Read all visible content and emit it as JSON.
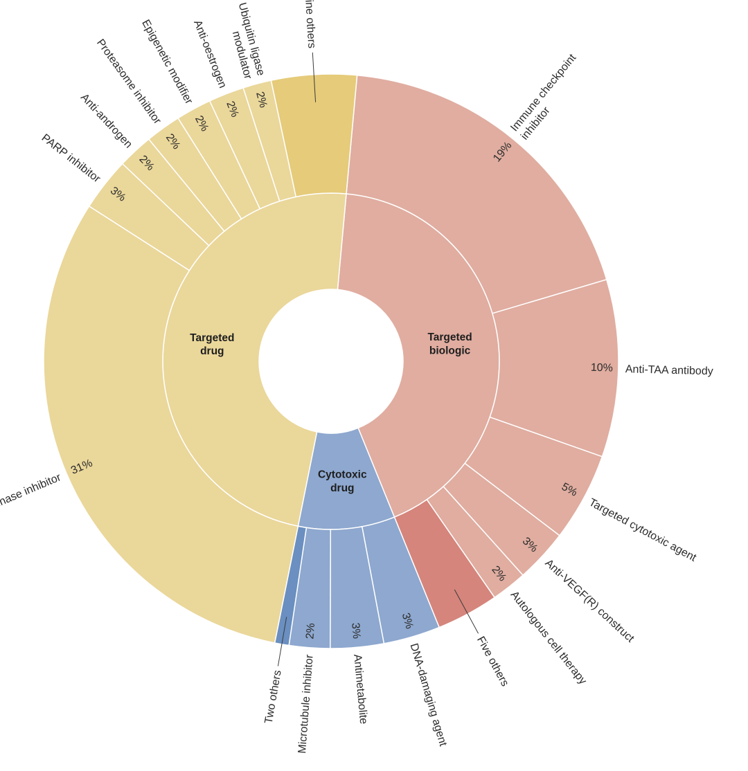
{
  "chart_data": {
    "type": "sunburst",
    "categories": [
      {
        "name": "Targeted biologic",
        "label_lines": [
          "Targeted",
          "biologic"
        ],
        "color": "#e0ada0",
        "children": [
          {
            "name": "Immune checkpoint inhibitor",
            "label_lines": [
              "Immune checkpoint",
              "inhibitor"
            ],
            "value": 19,
            "pct_label": "19%"
          },
          {
            "name": "Anti-TAA antibody",
            "label_lines": [
              "Anti-TAA antibody"
            ],
            "value": 10,
            "pct_label": "10%"
          },
          {
            "name": "Targeted cytotoxic agent",
            "label_lines": [
              "Targeted cytotoxic agent"
            ],
            "value": 5,
            "pct_label": "5%"
          },
          {
            "name": "Anti-VEGF(R) construct",
            "label_lines": [
              "Anti-VEGF(R) construct"
            ],
            "value": 3,
            "pct_label": "3%"
          },
          {
            "name": "Autologous cell therapy",
            "label_lines": [
              "Autologous cell therapy"
            ],
            "value": 2,
            "pct_label": "2%"
          },
          {
            "name": "Five others",
            "label_lines": [
              "Five others"
            ],
            "value": 3.5,
            "pct_label": "",
            "color": "#d5857c"
          }
        ]
      },
      {
        "name": "Cytotoxic drug",
        "label_lines": [
          "Cytotoxic",
          "drug"
        ],
        "color": "#8ea8cf",
        "children": [
          {
            "name": "DNA-damaging agent",
            "label_lines": [
              "DNA-damaging agent"
            ],
            "value": 3.2,
            "pct_label": "3%"
          },
          {
            "name": "Antimetabolite",
            "label_lines": [
              "Antimetabolite"
            ],
            "value": 3,
            "pct_label": "3%"
          },
          {
            "name": "Microtubule inhibitor",
            "label_lines": [
              "Microtubule inhibitor"
            ],
            "value": 2.3,
            "pct_label": "2%"
          },
          {
            "name": "Two others",
            "label_lines": [
              "Two others"
            ],
            "value": 0.8,
            "pct_label": "",
            "color": "#6a8fc0"
          }
        ]
      },
      {
        "name": "Targeted drug",
        "label_lines": [
          "Targeted",
          "drug"
        ],
        "color": "#ead79a",
        "children": [
          {
            "name": "Kinase inhibitor",
            "label_lines": [
              "Kinase inhibitor"
            ],
            "value": 31,
            "pct_label": "31%"
          },
          {
            "name": "PARP inhibitor",
            "label_lines": [
              "PARP inhibitor"
            ],
            "value": 3,
            "pct_label": "3%"
          },
          {
            "name": "Anti-androgen",
            "label_lines": [
              "Anti-androgen"
            ],
            "value": 2,
            "pct_label": "2%"
          },
          {
            "name": "Proteasome inhibitor",
            "label_lines": [
              "Proteasome inhibitor"
            ],
            "value": 2,
            "pct_label": "2%"
          },
          {
            "name": "Epigenetic modifier",
            "label_lines": [
              "Epigenetic modifier"
            ],
            "value": 2,
            "pct_label": "2%"
          },
          {
            "name": "Anti-oestrogen",
            "label_lines": [
              "Anti-oestrogen"
            ],
            "value": 2,
            "pct_label": "2%"
          },
          {
            "name": "Ubiquitin ligase modulator",
            "label_lines": [
              "Ubiquitin ligase",
              "modulator"
            ],
            "value": 1.6,
            "pct_label": "2%"
          },
          {
            "name": "Nine others",
            "label_lines": [
              "Nine others"
            ],
            "value": 4.8,
            "pct_label": "",
            "color": "#e5cb7a"
          }
        ]
      }
    ],
    "colors": {
      "targeted_biologic": "#e0ada0",
      "targeted_biologic_others": "#d5857c",
      "cytotoxic_drug": "#8ea8cf",
      "cytotoxic_drug_others": "#6a8fc0",
      "targeted_drug": "#ead79a",
      "targeted_drug_others": "#e5cb7a"
    }
  }
}
